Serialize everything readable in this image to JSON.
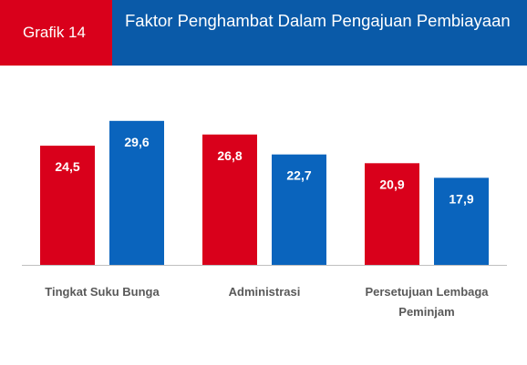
{
  "header": {
    "badge": "Grafik 14",
    "title": "Faktor Penghambat Dalam Pengajuan Pembiayaan"
  },
  "chart_data": {
    "type": "bar",
    "categories": [
      [
        "Tingkat Suku Bunga"
      ],
      [
        "Administrasi"
      ],
      [
        "Persetujuan Lembaga",
        "Peminjam"
      ]
    ],
    "series": [
      {
        "values": [
          24.5,
          26.8,
          20.9
        ],
        "labels": [
          "24,5",
          "26,8",
          "20,9"
        ],
        "color": "#d9001b"
      },
      {
        "values": [
          29.6,
          22.7,
          17.9
        ],
        "labels": [
          "29,6",
          "22,7",
          "17,9"
        ],
        "color": "#0a64bd"
      }
    ],
    "ylim": [
      0,
      30.5
    ],
    "grid": false,
    "legend": "none",
    "axis_color": "#bfbfbf"
  }
}
